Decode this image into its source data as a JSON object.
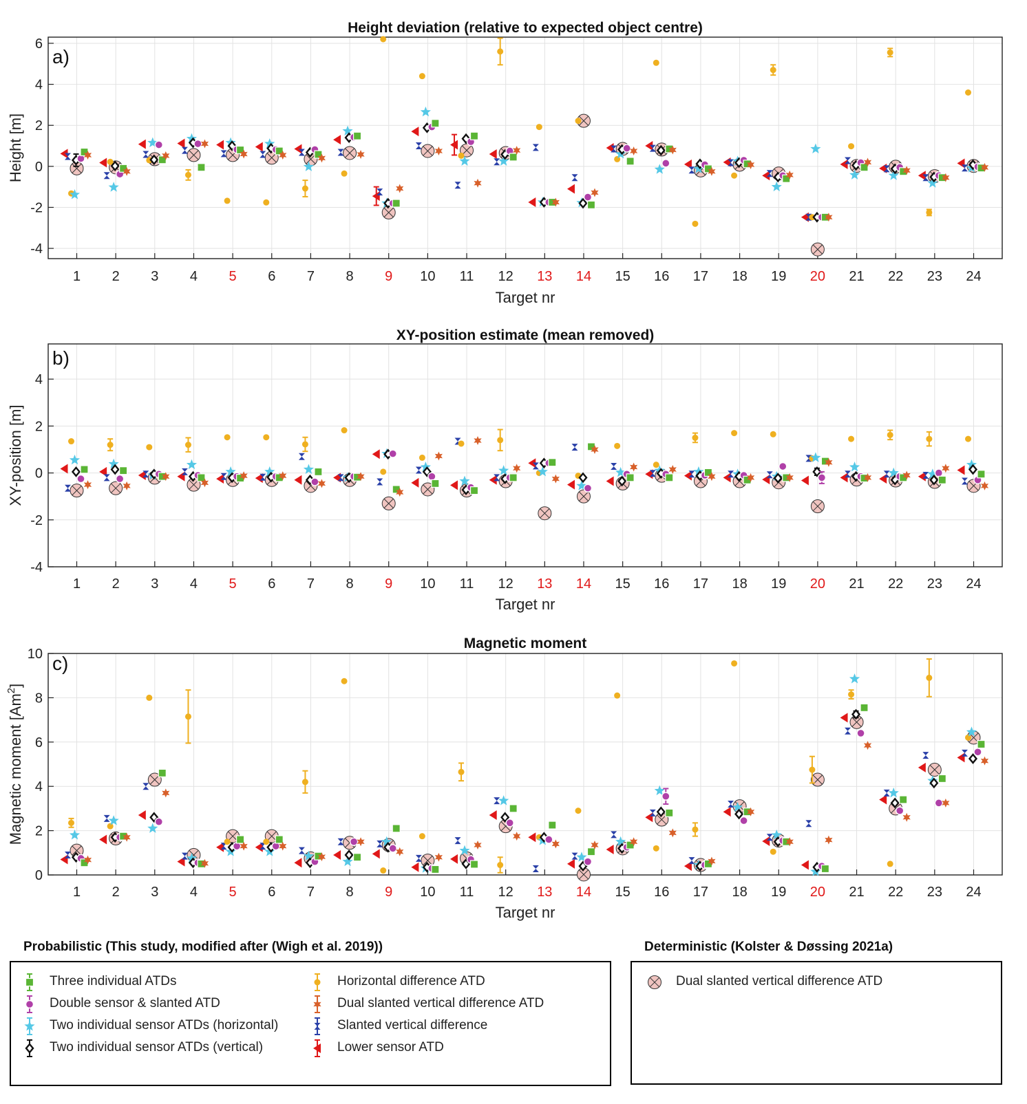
{
  "panels_order": [
    "a",
    "b",
    "c"
  ],
  "targets": [
    "1",
    "2",
    "3",
    "4",
    "5",
    "6",
    "7",
    "8",
    "9",
    "10",
    "11",
    "12",
    "13",
    "14",
    "15",
    "16",
    "17",
    "18",
    "19",
    "20",
    "21",
    "22",
    "23",
    "24"
  ],
  "highlighted_targets": [
    5,
    9,
    13,
    14,
    20
  ],
  "colors": {
    "three": "#5ab535",
    "double": "#b040a8",
    "twoh": "#55c8e6",
    "twov": "#111111",
    "horiz": "#efb020",
    "dual": "#d8602a",
    "slanted": "#2a40a8",
    "lower": "#e01818",
    "det_fill": "#f0c4c0",
    "highlight": "#e01818",
    "axis": "#222222",
    "grid": "#e2e2e2"
  },
  "series_order": [
    "lower",
    "slanted",
    "horiz",
    "twoh",
    "twov",
    "double",
    "three",
    "dual"
  ],
  "chart_data": [
    {
      "type": "scatter",
      "panel_label": "a)",
      "title": "Height deviation (relative to expected object centre)",
      "xlabel": "Target nr",
      "ylabel": "Height [m]",
      "ylim": [
        -4.5,
        6.3
      ],
      "yticks": [
        -4,
        -2,
        0,
        2,
        4,
        6
      ],
      "grid": true,
      "series": {
        "lower": [
          0.62,
          0.18,
          1.08,
          1.12,
          1.05,
          0.95,
          0.85,
          1.3,
          -1.45,
          1.7,
          1.05,
          0.6,
          -1.75,
          -1.1,
          0.9,
          1.0,
          0.1,
          0.2,
          -0.45,
          -2.48,
          0.1,
          -0.1,
          -0.45,
          0.15
        ],
        "slanted": [
          0.48,
          -0.45,
          0.58,
          0.78,
          0.62,
          0.58,
          0.68,
          0.68,
          -1.25,
          1.0,
          -0.92,
          0.22,
          0.92,
          -0.55,
          0.85,
          0.88,
          -0.18,
          0.18,
          -0.35,
          -2.48,
          0.28,
          -0.12,
          -0.55,
          -0.08
        ],
        "horiz": [
          -1.32,
          0.22,
          0.3,
          -0.42,
          -1.68,
          -1.76,
          -1.08,
          -0.35,
          6.2,
          4.4,
          0.52,
          5.6,
          1.92,
          2.22,
          0.35,
          5.05,
          -2.8,
          -0.45,
          4.7,
          -2.48,
          0.98,
          5.55,
          -2.25,
          3.6
        ],
        "twoh": [
          -1.38,
          -1.02,
          1.15,
          1.35,
          1.15,
          1.1,
          -0.02,
          1.72,
          -1.8,
          2.65,
          0.25,
          0.25,
          -1.75,
          -1.78,
          0.6,
          -0.15,
          -0.12,
          0.25,
          -1.0,
          0.85,
          -0.42,
          -0.45,
          -0.82,
          -0.08
        ],
        "twov": [
          0.3,
          0.02,
          0.32,
          1.15,
          1.0,
          0.88,
          0.68,
          1.4,
          -1.8,
          1.88,
          1.35,
          0.58,
          -1.75,
          -1.8,
          0.82,
          0.78,
          0.12,
          0.18,
          -0.52,
          -2.48,
          0.05,
          -0.12,
          -0.52,
          0.08
        ],
        "double": [
          0.38,
          -0.38,
          1.05,
          1.1,
          0.82,
          0.82,
          0.82,
          1.42,
          -1.8,
          1.92,
          1.2,
          0.75,
          -1.75,
          -1.5,
          0.88,
          0.15,
          0.08,
          0.3,
          -0.45,
          -2.48,
          0.18,
          -0.05,
          -0.45,
          -0.02
        ],
        "three": [
          0.7,
          -0.1,
          0.32,
          -0.05,
          0.8,
          0.75,
          0.58,
          1.48,
          -1.8,
          2.1,
          1.48,
          0.45,
          -1.75,
          -1.88,
          0.25,
          0.85,
          -0.12,
          0.12,
          -0.6,
          -2.48,
          -0.05,
          -0.25,
          -0.55,
          -0.08
        ],
        "dual": [
          0.55,
          -0.25,
          0.52,
          1.1,
          0.6,
          0.55,
          0.4,
          0.58,
          -1.08,
          0.75,
          -0.82,
          0.78,
          -1.75,
          -1.28,
          0.75,
          0.8,
          -0.25,
          0.08,
          -0.42,
          -2.48,
          0.2,
          -0.2,
          -0.55,
          -0.05
        ],
        "det": [
          -0.1,
          -0.05,
          0.35,
          0.55,
          0.55,
          0.42,
          0.35,
          0.65,
          -2.25,
          0.75,
          0.78,
          0.65,
          null,
          2.22,
          0.85,
          0.82,
          -0.2,
          0.08,
          -0.35,
          -4.05,
          0.02,
          -0.02,
          -0.48,
          0.02
        ]
      },
      "errors": {
        "lower": {
          "9": 0.45,
          "11": 0.5
        },
        "horiz": {
          "7": 0.4,
          "12": 0.65,
          "19": 0.25,
          "22": 0.2,
          "23": 0.15,
          "4": 0.25
        },
        "twov": {
          "1": 0.3
        }
      }
    },
    {
      "type": "scatter",
      "panel_label": "b)",
      "title": "XY-position estimate (mean removed)",
      "xlabel": "Target nr",
      "ylabel": "XY-position [m]",
      "ylim": [
        -4,
        5.5
      ],
      "yticks": [
        -4,
        -2,
        0,
        2,
        4
      ],
      "grid": true,
      "series": {
        "lower": [
          0.18,
          0.05,
          -0.1,
          -0.15,
          -0.25,
          -0.22,
          -0.3,
          -0.2,
          0.8,
          -0.42,
          -0.52,
          -0.3,
          0.42,
          -0.5,
          -0.35,
          -0.05,
          -0.12,
          -0.2,
          -0.28,
          -0.32,
          -0.2,
          -0.25,
          -0.15,
          0.12
        ],
        "slanted": [
          -0.65,
          -0.2,
          -0.05,
          0.05,
          -0.15,
          -0.18,
          0.7,
          -0.2,
          -0.38,
          0.12,
          1.35,
          -0.2,
          0.3,
          1.1,
          0.28,
          -0.02,
          -0.05,
          -0.05,
          -0.08,
          0.62,
          -0.05,
          -0.05,
          -0.1,
          -0.35
        ],
        "horiz": [
          1.35,
          1.2,
          1.1,
          1.2,
          1.52,
          1.52,
          1.22,
          1.82,
          0.05,
          0.65,
          1.25,
          1.4,
          0.0,
          -0.12,
          1.15,
          0.35,
          1.5,
          1.7,
          1.65,
          0.62,
          1.45,
          1.62,
          1.45,
          1.45
        ],
        "twoh": [
          0.55,
          0.38,
          -0.1,
          0.35,
          0.05,
          0.05,
          0.15,
          -0.2,
          0.82,
          0.25,
          -0.35,
          0.1,
          0.05,
          -0.55,
          0.02,
          0.1,
          0.05,
          -0.05,
          -0.15,
          0.65,
          0.25,
          0.0,
          -0.05,
          0.35
        ],
        "twov": [
          0.05,
          0.15,
          -0.05,
          -0.15,
          -0.2,
          -0.18,
          -0.3,
          -0.2,
          0.8,
          0.05,
          -0.72,
          -0.25,
          0.42,
          -0.2,
          -0.35,
          -0.02,
          -0.12,
          -0.15,
          -0.22,
          0.05,
          -0.15,
          -0.3,
          -0.3,
          0.15
        ],
        "double": [
          -0.25,
          -0.25,
          -0.05,
          -0.1,
          -0.15,
          -0.15,
          -0.38,
          -0.15,
          0.82,
          -0.15,
          -0.62,
          -0.2,
          0.42,
          -0.65,
          -0.05,
          -0.05,
          -0.1,
          -0.1,
          0.28,
          -0.2,
          -0.15,
          -0.15,
          0.0,
          -0.3
        ],
        "three": [
          0.15,
          0.1,
          -0.15,
          -0.2,
          -0.22,
          -0.2,
          0.05,
          -0.18,
          -0.7,
          -0.45,
          -0.75,
          -0.2,
          0.45,
          1.12,
          -0.2,
          -0.2,
          0.02,
          -0.3,
          -0.2,
          0.5,
          -0.22,
          -0.2,
          -0.3,
          -0.05
        ],
        "dual": [
          -0.5,
          -0.55,
          -0.15,
          -0.42,
          -0.12,
          -0.12,
          -0.45,
          -0.15,
          -0.82,
          0.72,
          1.38,
          0.2,
          -0.25,
          1.0,
          0.25,
          0.15,
          -0.15,
          -0.2,
          -0.2,
          0.45,
          -0.2,
          -0.1,
          0.2,
          -0.55
        ],
        "det": [
          -0.75,
          -0.65,
          -0.2,
          -0.5,
          -0.3,
          -0.3,
          -0.55,
          -0.3,
          -1.3,
          -0.7,
          -0.75,
          -0.35,
          -1.72,
          -1.0,
          -0.45,
          -0.12,
          -0.35,
          -0.35,
          -0.4,
          -1.42,
          -0.28,
          -0.32,
          -0.38,
          -0.55
        ]
      },
      "errors": {
        "horiz": {
          "2": 0.25,
          "4": 0.3,
          "7": 0.3,
          "12": 0.45,
          "17": 0.2,
          "22": 0.2,
          "23": 0.3
        },
        "double": {
          "20": 0.25
        },
        "twov": {
          "20": 0.15
        }
      }
    },
    {
      "type": "scatter",
      "panel_label": "c)",
      "title": "Magnetic moment",
      "xlabel": "Target nr",
      "ylabel": "Magnetic moment [Am^2]",
      "ylim": [
        0,
        10
      ],
      "yticks": [
        0,
        2,
        4,
        6,
        8,
        10
      ],
      "grid": true,
      "series": {
        "lower": [
          0.7,
          1.6,
          2.7,
          0.6,
          1.25,
          1.25,
          0.55,
          0.9,
          0.95,
          0.35,
          0.72,
          2.7,
          1.7,
          0.5,
          1.15,
          2.6,
          0.4,
          2.85,
          1.52,
          0.45,
          7.1,
          3.4,
          4.85,
          5.3
        ],
        "slanted": [
          0.9,
          2.55,
          4.0,
          0.85,
          1.3,
          1.3,
          1.1,
          1.5,
          1.4,
          0.75,
          1.55,
          3.35,
          0.28,
          0.85,
          1.82,
          2.8,
          0.65,
          3.2,
          1.7,
          2.32,
          6.5,
          3.7,
          5.4,
          5.5
        ],
        "horiz": [
          2.35,
          2.2,
          8.0,
          7.15,
          1.5,
          1.5,
          4.2,
          8.75,
          0.2,
          1.75,
          4.65,
          0.45,
          1.7,
          2.9,
          8.1,
          1.2,
          2.05,
          9.55,
          1.05,
          4.75,
          8.15,
          0.5,
          8.9,
          6.2
        ],
        "twoh": [
          1.8,
          2.45,
          2.1,
          0.75,
          1.05,
          1.05,
          0.85,
          0.6,
          1.5,
          0.3,
          1.1,
          3.35,
          1.55,
          0.8,
          1.5,
          3.8,
          0.45,
          3.05,
          1.8,
          0.15,
          8.85,
          3.7,
          4.25,
          6.45
        ],
        "twov": [
          0.8,
          1.7,
          2.6,
          0.55,
          1.25,
          1.25,
          0.55,
          0.9,
          1.25,
          0.35,
          0.5,
          2.6,
          1.7,
          0.4,
          1.2,
          2.85,
          0.4,
          2.75,
          1.5,
          0.35,
          7.25,
          3.25,
          4.15,
          5.25
        ],
        "double": [
          0.75,
          1.7,
          2.4,
          0.55,
          1.3,
          1.3,
          0.6,
          1.5,
          1.2,
          0.3,
          0.7,
          2.35,
          1.6,
          0.6,
          1.25,
          3.55,
          0.45,
          2.45,
          1.55,
          0.4,
          6.4,
          2.9,
          3.25,
          5.55
        ],
        "three": [
          0.55,
          1.75,
          4.6,
          0.5,
          1.6,
          1.6,
          0.85,
          0.8,
          2.1,
          0.25,
          0.48,
          3.0,
          2.25,
          1.05,
          1.35,
          2.8,
          0.5,
          2.85,
          1.5,
          0.28,
          7.55,
          3.4,
          4.35,
          5.9
        ],
        "dual": [
          0.68,
          1.7,
          3.7,
          0.52,
          1.3,
          1.3,
          0.82,
          1.5,
          1.05,
          0.8,
          1.35,
          1.75,
          1.4,
          1.35,
          1.5,
          1.9,
          0.62,
          2.85,
          1.5,
          1.58,
          5.85,
          2.6,
          3.25,
          5.15
        ],
        "det": [
          1.1,
          1.65,
          4.3,
          0.9,
          1.75,
          1.75,
          0.75,
          1.45,
          1.35,
          0.65,
          0.75,
          2.2,
          null,
          0.02,
          1.2,
          2.5,
          0.45,
          3.1,
          1.55,
          4.3,
          6.9,
          3.0,
          4.75,
          6.2
        ]
      },
      "errors": {
        "horiz": {
          "1": 0.2,
          "4": 1.2,
          "7": 0.5,
          "11": 0.4,
          "12": 0.35,
          "17": 0.3,
          "20": 0.6,
          "21": 0.2,
          "23": 0.85
        },
        "double": {
          "16": 0.35
        },
        "twov": {
          "21": 0.15
        }
      }
    }
  ],
  "legend": {
    "probabilistic_title": "Probabilistic (This study, modified after (Wigh et al. 2019))",
    "deterministic_title": "Deterministic (Kolster & Døssing 2021a)",
    "items_left": [
      {
        "key": "three",
        "label": "Three individual ATDs"
      },
      {
        "key": "double",
        "label": "Double sensor & slanted ATD"
      },
      {
        "key": "twoh",
        "label": "Two individual sensor ATDs (horizontal)"
      },
      {
        "key": "twov",
        "label": "Two individual sensor ATDs (vertical)"
      }
    ],
    "items_right": [
      {
        "key": "horiz",
        "label": "Horizontal difference ATD"
      },
      {
        "key": "dual",
        "label": "Dual slanted vertical difference ATD"
      },
      {
        "key": "slanted",
        "label": "Slanted vertical difference"
      },
      {
        "key": "lower",
        "label": "Lower sensor ATD"
      }
    ],
    "deterministic_item": {
      "key": "det",
      "label": "Dual slanted vertical difference ATD"
    }
  }
}
